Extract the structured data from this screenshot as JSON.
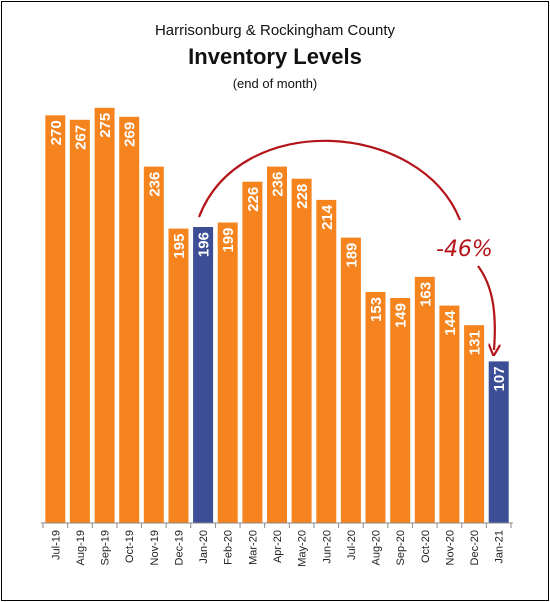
{
  "header": {
    "subtitle": "Harrisonburg & Rockingham County",
    "title": "Inventory Levels",
    "note": "(end of month)"
  },
  "annotation": {
    "text": "-46%",
    "color": "#b3141a"
  },
  "colors": {
    "default_bar": "#f5841f",
    "highlight_bar": "#3b4e96"
  },
  "chart_data": {
    "type": "bar",
    "title": "Inventory Levels",
    "subtitle": "Harrisonburg & Rockingham County",
    "xlabel": "",
    "ylabel": "",
    "ylim": [
      0,
      295
    ],
    "grid": false,
    "categories": [
      "Jul-19",
      "Aug-19",
      "Sep-19",
      "Oct-19",
      "Nov-19",
      "Dec-19",
      "Jan-20",
      "Feb-20",
      "Mar-20",
      "Apr-20",
      "May-20",
      "Jun-20",
      "Jul-20",
      "Aug-20",
      "Sep-20",
      "Oct-20",
      "Nov-20",
      "Dec-20",
      "Jan-21"
    ],
    "values": [
      270,
      267,
      275,
      269,
      236,
      195,
      196,
      199,
      226,
      236,
      228,
      214,
      189,
      153,
      149,
      163,
      144,
      131,
      107
    ],
    "highlighted": [
      "Jan-20",
      "Jan-21"
    ]
  }
}
